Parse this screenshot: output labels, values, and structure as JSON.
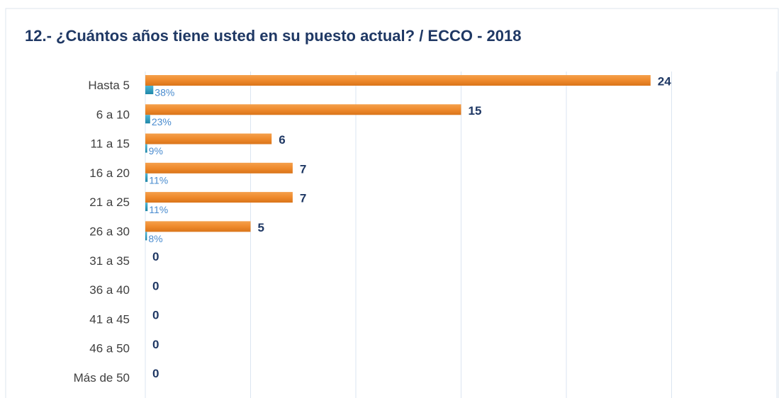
{
  "chart_data": {
    "type": "bar",
    "orientation": "horizontal",
    "title": "12.- ¿Cuántos años tiene usted en su puesto actual?   /   ECCO - 2018",
    "categories": [
      "Hasta 5",
      "6 a 10",
      "11 a 15",
      "16 a 20",
      "21 a 25",
      "26 a 30",
      "31 a 35",
      "36 a 40",
      "41 a 45",
      "46 a 50",
      "Más de 50"
    ],
    "series": [
      {
        "color": "#ef8a2c",
        "values": [
          24,
          15,
          6,
          7,
          7,
          5,
          0,
          0,
          0,
          0,
          0
        ]
      },
      {
        "color": "#2e9fbf",
        "values": [
          0.38,
          0.23,
          0.09,
          0.11,
          0.11,
          0.08,
          null,
          null,
          null,
          null,
          null
        ],
        "value_labels": [
          "38%",
          "23%",
          "9%",
          "11%",
          "11%",
          "8%",
          null,
          null,
          null,
          null,
          null
        ]
      }
    ],
    "xlim": [
      0,
      30
    ],
    "xticks": [
      0,
      5,
      10,
      15,
      20,
      25,
      30
    ],
    "grid": true
  }
}
